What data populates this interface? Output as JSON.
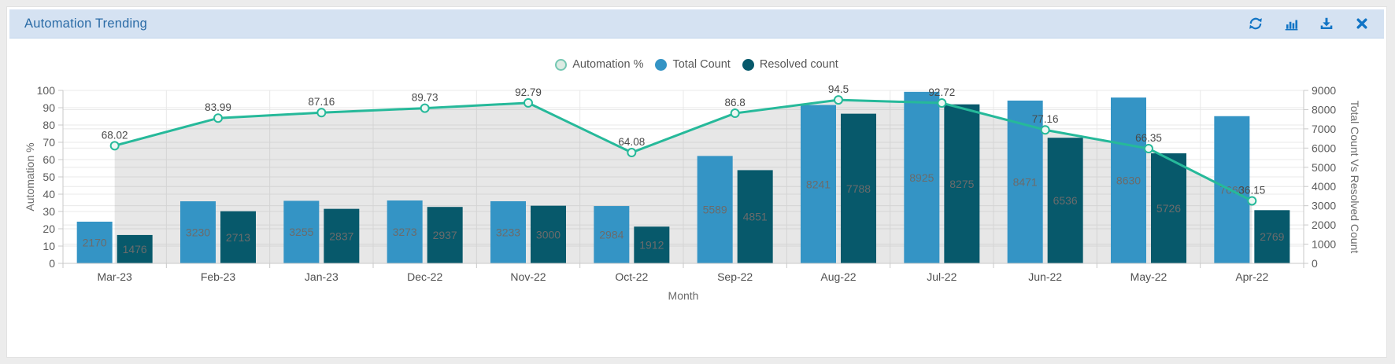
{
  "header": {
    "title": "Automation Trending",
    "icons": [
      {
        "name": "refresh-icon"
      },
      {
        "name": "bar-chart-icon"
      },
      {
        "name": "download-icon"
      },
      {
        "name": "close-icon"
      }
    ]
  },
  "colors": {
    "header_bg": "#d5e2f2",
    "title_text": "#2a6ba6",
    "icon": "#1174c5",
    "total_bar": "#3494c5",
    "resolved_bar": "#07596b",
    "line": "#26b99a",
    "marker_fill": "#eef7f3",
    "area_fill": "rgba(120,120,120,0.18)",
    "grid": "#e8e8e8",
    "axis_line": "#c9c9c9",
    "bar_label": "#6b6b6b",
    "point_label": "#4a4a4a",
    "tick_label": "#5a5a5a",
    "axis_title": "#6a6a6a",
    "legend_auto_fill": "#dcebe3",
    "legend_auto_border": "#74c7b2"
  },
  "chart_data": {
    "type": "combo-bar-line",
    "categories": [
      "Mar-23",
      "Feb-23",
      "Jan-23",
      "Dec-22",
      "Nov-22",
      "Oct-22",
      "Sep-22",
      "Aug-22",
      "Jul-22",
      "Jun-22",
      "May-22",
      "Apr-22"
    ],
    "series": [
      {
        "name": "Automation %",
        "type": "line",
        "axis": "left",
        "values": [
          68.02,
          83.99,
          87.16,
          89.73,
          92.79,
          64.08,
          86.8,
          94.5,
          92.72,
          77.16,
          66.35,
          36.15
        ]
      },
      {
        "name": "Total Count",
        "type": "bar",
        "axis": "right",
        "values": [
          2170,
          3230,
          3255,
          3273,
          3233,
          2984,
          5589,
          8241,
          8925,
          8471,
          8630,
          7660
        ]
      },
      {
        "name": "Resolved count",
        "type": "bar",
        "axis": "right",
        "values": [
          1476,
          2713,
          2837,
          2937,
          3000,
          1912,
          4851,
          7788,
          8275,
          6536,
          5726,
          2769
        ]
      }
    ],
    "xlabel": "Month",
    "left_axis": {
      "label": "Automation %",
      "min": 0,
      "max": 100,
      "step": 10
    },
    "right_axis": {
      "label": "Total Count Vs Resolved Count",
      "min": 0,
      "max": 9000,
      "step": 1000
    },
    "grid": true,
    "legend_position": "top-center"
  }
}
